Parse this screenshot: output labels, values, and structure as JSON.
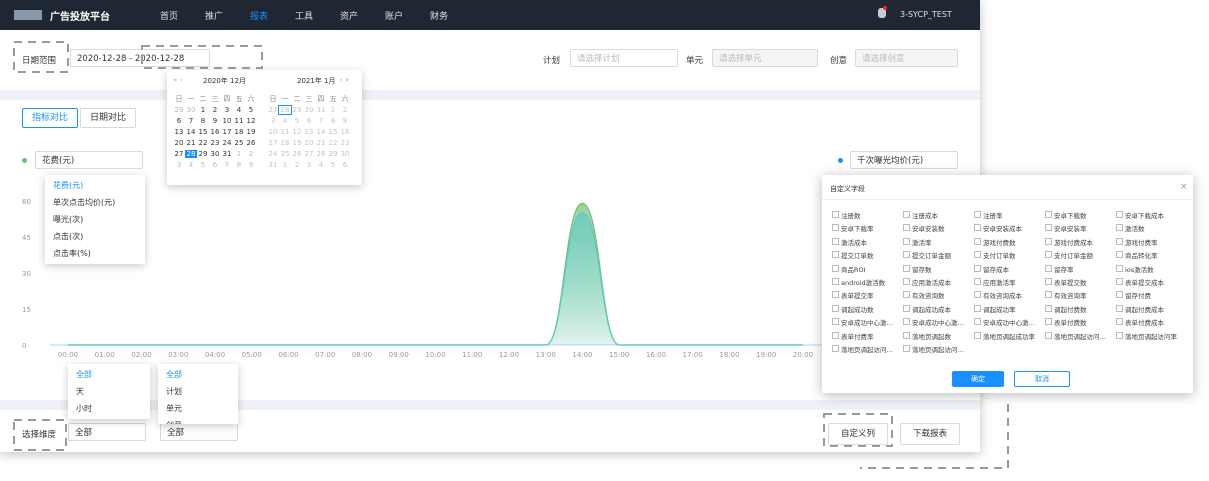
{
  "nav": {
    "logo": "广告投放平台",
    "menu": [
      "首页",
      "推广",
      "报表",
      "工具",
      "资产",
      "账户",
      "财务"
    ],
    "user": "3-SYCP_TEST"
  },
  "filters": {
    "date_label": "日期范围",
    "date_value": "2020-12-28 - 2020-12-28",
    "plan_label": "计划",
    "plan_placeholder": "请选择计划",
    "unit_label": "单元",
    "unit_placeholder": "请选择单元",
    "creative_label": "创意",
    "creative_placeholder": "请选择创意"
  },
  "calendar": {
    "weekdays": [
      "日",
      "一",
      "二",
      "三",
      "四",
      "五",
      "六"
    ],
    "months": [
      {
        "title": "2020年 12月",
        "days": [
          "29",
          "30",
          "1",
          "2",
          "3",
          "4",
          "5",
          "6",
          "7",
          "8",
          "9",
          "10",
          "11",
          "12",
          "13",
          "14",
          "15",
          "16",
          "17",
          "18",
          "19",
          "20",
          "21",
          "22",
          "23",
          "24",
          "25",
          "26",
          "27",
          "28",
          "29",
          "30",
          "31",
          "1",
          "2",
          "3",
          "4",
          "5",
          "6",
          "7",
          "8",
          "9"
        ]
      },
      {
        "title": "2021年 1月",
        "days": [
          "27",
          "28",
          "29",
          "30",
          "31",
          "1",
          "2",
          "3",
          "4",
          "5",
          "6",
          "7",
          "8",
          "9",
          "10",
          "11",
          "12",
          "13",
          "14",
          "15",
          "16",
          "17",
          "18",
          "19",
          "20",
          "21",
          "22",
          "23",
          "24",
          "25",
          "26",
          "27",
          "28",
          "29",
          "30",
          "31",
          "1",
          "2",
          "3",
          "4",
          "5",
          "6"
        ]
      }
    ]
  },
  "tabs": [
    "指标对比",
    "日期对比"
  ],
  "metric_options": [
    "花费(元)",
    "单次点击均价(元)",
    "曝光(次)",
    "点击(次)",
    "点击率(%)"
  ],
  "chart_data": {
    "type": "area",
    "categories": [
      "00:00",
      "01:00",
      "02:00",
      "03:00",
      "04:00",
      "05:00",
      "06:00",
      "07:00",
      "08:00",
      "09:00",
      "10:00",
      "11:00",
      "12:00",
      "13:00",
      "14:00",
      "15:00",
      "16:00",
      "17:00",
      "18:00",
      "19:00",
      "20:00"
    ],
    "series": [
      {
        "name": "花费(元)",
        "color": "#6cc070",
        "values": [
          0,
          0,
          0,
          0,
          0,
          0,
          0,
          0,
          0,
          0,
          0,
          0,
          0,
          0,
          59,
          0,
          0,
          0,
          0,
          0,
          0
        ]
      },
      {
        "name": "千次曝光均价(元)",
        "color": "#5ec8c8",
        "values": [
          0,
          0,
          0,
          0,
          0,
          0,
          0,
          0,
          0,
          0,
          0,
          0,
          0,
          0,
          55,
          0,
          0,
          0,
          0,
          0,
          0
        ]
      }
    ],
    "ylim": [
      0,
      60
    ],
    "yticks": [
      0,
      15,
      30,
      45,
      60
    ],
    "grid": false
  },
  "bottom": {
    "dimension_label": "选择维度",
    "dimension_value": "全部",
    "level_value": "全部",
    "dimension_options": [
      "全部",
      "天",
      "小时"
    ],
    "level_options": [
      "全部",
      "计划",
      "单元",
      "创意"
    ],
    "customize": "自定义列",
    "download": "下载报表"
  },
  "dialog": {
    "title": "自定义字段",
    "fields": [
      "注册数",
      "注册成本",
      "注册率",
      "安卓下载数",
      "安卓下载成本",
      "安卓下载率",
      "安卓安装数",
      "安卓安装成本",
      "安卓安装率",
      "激活数",
      "激活成本",
      "激活率",
      "游戏付费数",
      "游戏付费成本",
      "游戏付费率",
      "提交订单数",
      "提交订单金额",
      "支付订单数",
      "支付订单金额",
      "商品转化率",
      "商品ROI",
      "留存数",
      "留存成本",
      "留存率",
      "ios激活数",
      "android激活数",
      "应用激活成本",
      "应用激活率",
      "表单提交数",
      "表单提交成本",
      "表单提交率",
      "有效咨询数",
      "有效咨询成本",
      "有效咨询率",
      "留存付费",
      "调起成功数",
      "调起成功成本",
      "调起成功率",
      "调起付费数",
      "调起付费成本",
      "安卓成功中心激活数",
      "安卓成功中心激活成本",
      "安卓成功中心激活率",
      "表单付费数",
      "表单付费成本",
      "表单付费率",
      "落地页调起数",
      "落地页调起成功率",
      "落地页调起访问成本",
      "落地页调起访问率",
      "落地页调起访问转化率",
      "落地页调起访问转化成本"
    ],
    "confirm": "确定",
    "cancel": "取消"
  }
}
